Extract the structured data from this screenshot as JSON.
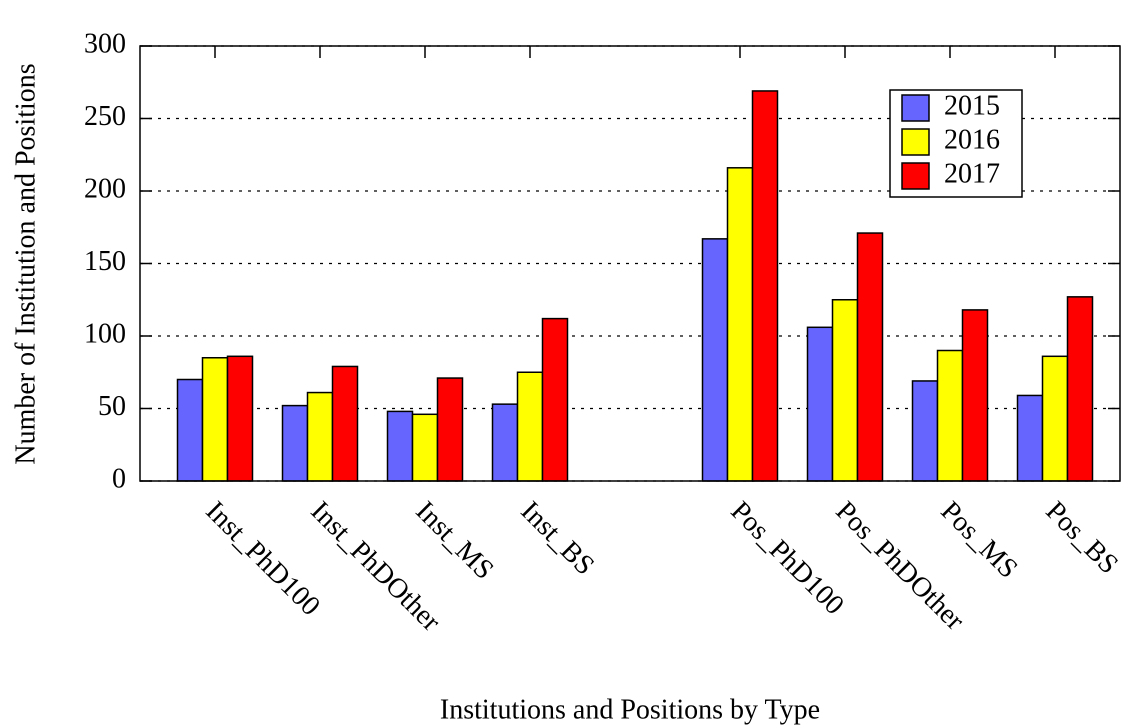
{
  "chart_data": {
    "type": "bar",
    "x_label": "Institutions and Positions by Type",
    "y_label": "Number of Institution and Positions",
    "categories": [
      "Inst_PhD100",
      "Inst_PhDOther",
      "Inst_MS",
      "Inst_BS",
      null,
      "Pos_PhD100",
      "Pos_PhDOther",
      "Pos_MS",
      "Pos_BS"
    ],
    "series": [
      {
        "name": "2015",
        "color": "#6666ff",
        "values": [
          70,
          52,
          48,
          53,
          null,
          167,
          106,
          69,
          59
        ]
      },
      {
        "name": "2016",
        "color": "#ffff00",
        "values": [
          85,
          61,
          46,
          75,
          null,
          216,
          125,
          90,
          86
        ]
      },
      {
        "name": "2017",
        "color": "#ff0000",
        "values": [
          86,
          79,
          71,
          112,
          null,
          269,
          171,
          118,
          127
        ]
      }
    ],
    "ylim": [
      0,
      300
    ],
    "yticks": [
      0,
      50,
      100,
      150,
      200,
      250,
      300
    ],
    "grid": true,
    "legend": "upper right"
  }
}
